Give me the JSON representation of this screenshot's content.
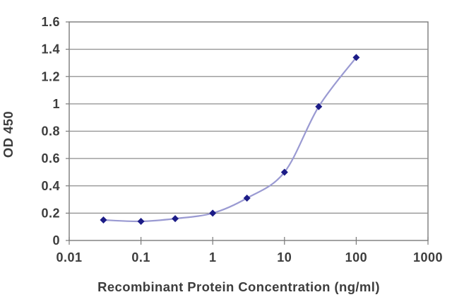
{
  "chart_data": {
    "type": "line",
    "title": "",
    "xlabel": "Recombinant Protein Concentration (ng/ml)",
    "ylabel": "OD 450",
    "x_scale": "log",
    "xlim": [
      0.01,
      1000
    ],
    "ylim": [
      0,
      1.6
    ],
    "x_tick_values": [
      0.01,
      0.1,
      1,
      10,
      100,
      1000
    ],
    "x_tick_labels": [
      "0.01",
      "0.1",
      "1",
      "10",
      "100",
      "1000"
    ],
    "y_tick_values": [
      0,
      0.2,
      0.4,
      0.6,
      0.8,
      1.0,
      1.2,
      1.4,
      1.6
    ],
    "y_tick_labels": [
      "0",
      "0.2",
      "0.4",
      "0.6",
      "0.8",
      "1",
      "1.2",
      "1.4",
      "1.6"
    ],
    "grid": "horizontal",
    "legend": "none",
    "series": [
      {
        "name": "OD 450",
        "x": [
          0.03,
          0.1,
          0.3,
          1,
          3,
          10,
          30,
          100
        ],
        "y": [
          0.15,
          0.14,
          0.16,
          0.2,
          0.31,
          0.5,
          0.98,
          1.34
        ],
        "line_style": "smooth",
        "line_color": "#9a9ad2",
        "marker": "diamond",
        "marker_color": "#1c1c87"
      }
    ],
    "colors": {
      "text": "#3d3d3d",
      "grid": "#8e8e8e",
      "axis": "#7a7a7a",
      "background": "#ffffff"
    }
  }
}
